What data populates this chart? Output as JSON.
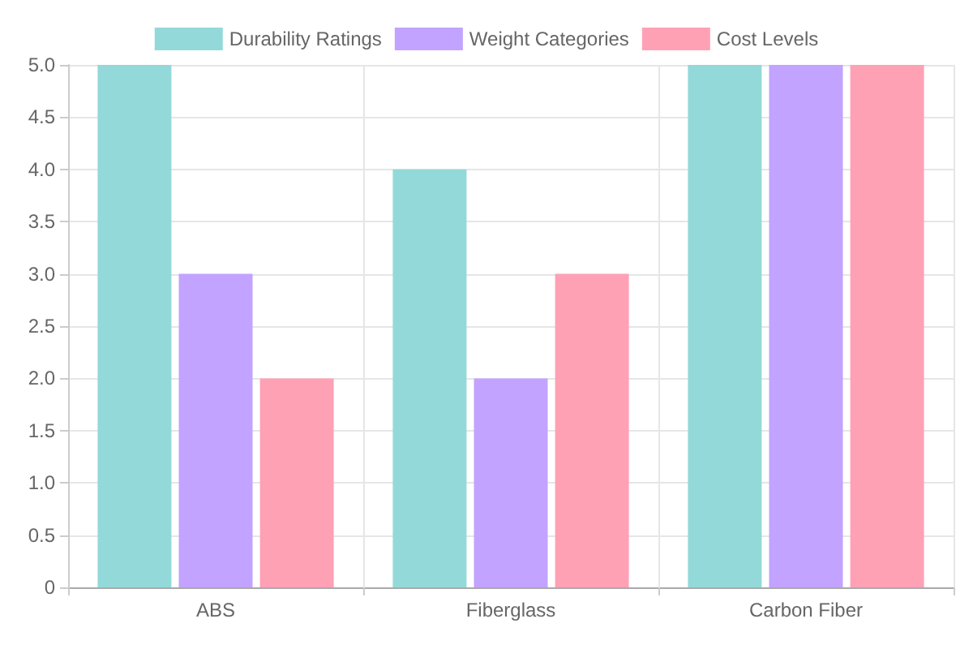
{
  "chart_data": {
    "type": "bar",
    "categories": [
      "ABS",
      "Fiberglass",
      "Carbon Fiber"
    ],
    "series": [
      {
        "name": "Durability Ratings",
        "color": "#93d9d9",
        "values": [
          5,
          4,
          5
        ]
      },
      {
        "name": "Weight Categories",
        "color": "#c2a3ff",
        "values": [
          3,
          2,
          5
        ]
      },
      {
        "name": "Cost Levels",
        "color": "#ffa1b5",
        "values": [
          2,
          3,
          5
        ]
      }
    ],
    "ylim": [
      0,
      5
    ],
    "yticks": [
      0,
      0.5,
      {
        "value": 1,
        "label": "1.0"
      },
      1.5,
      {
        "value": 2,
        "label": "2.0"
      },
      2.5,
      {
        "value": 3,
        "label": "3.0"
      },
      3.5,
      {
        "value": 4,
        "label": "4.0"
      },
      4.5,
      {
        "value": 5,
        "label": "5.0"
      }
    ],
    "grid": true,
    "legend": "top"
  }
}
